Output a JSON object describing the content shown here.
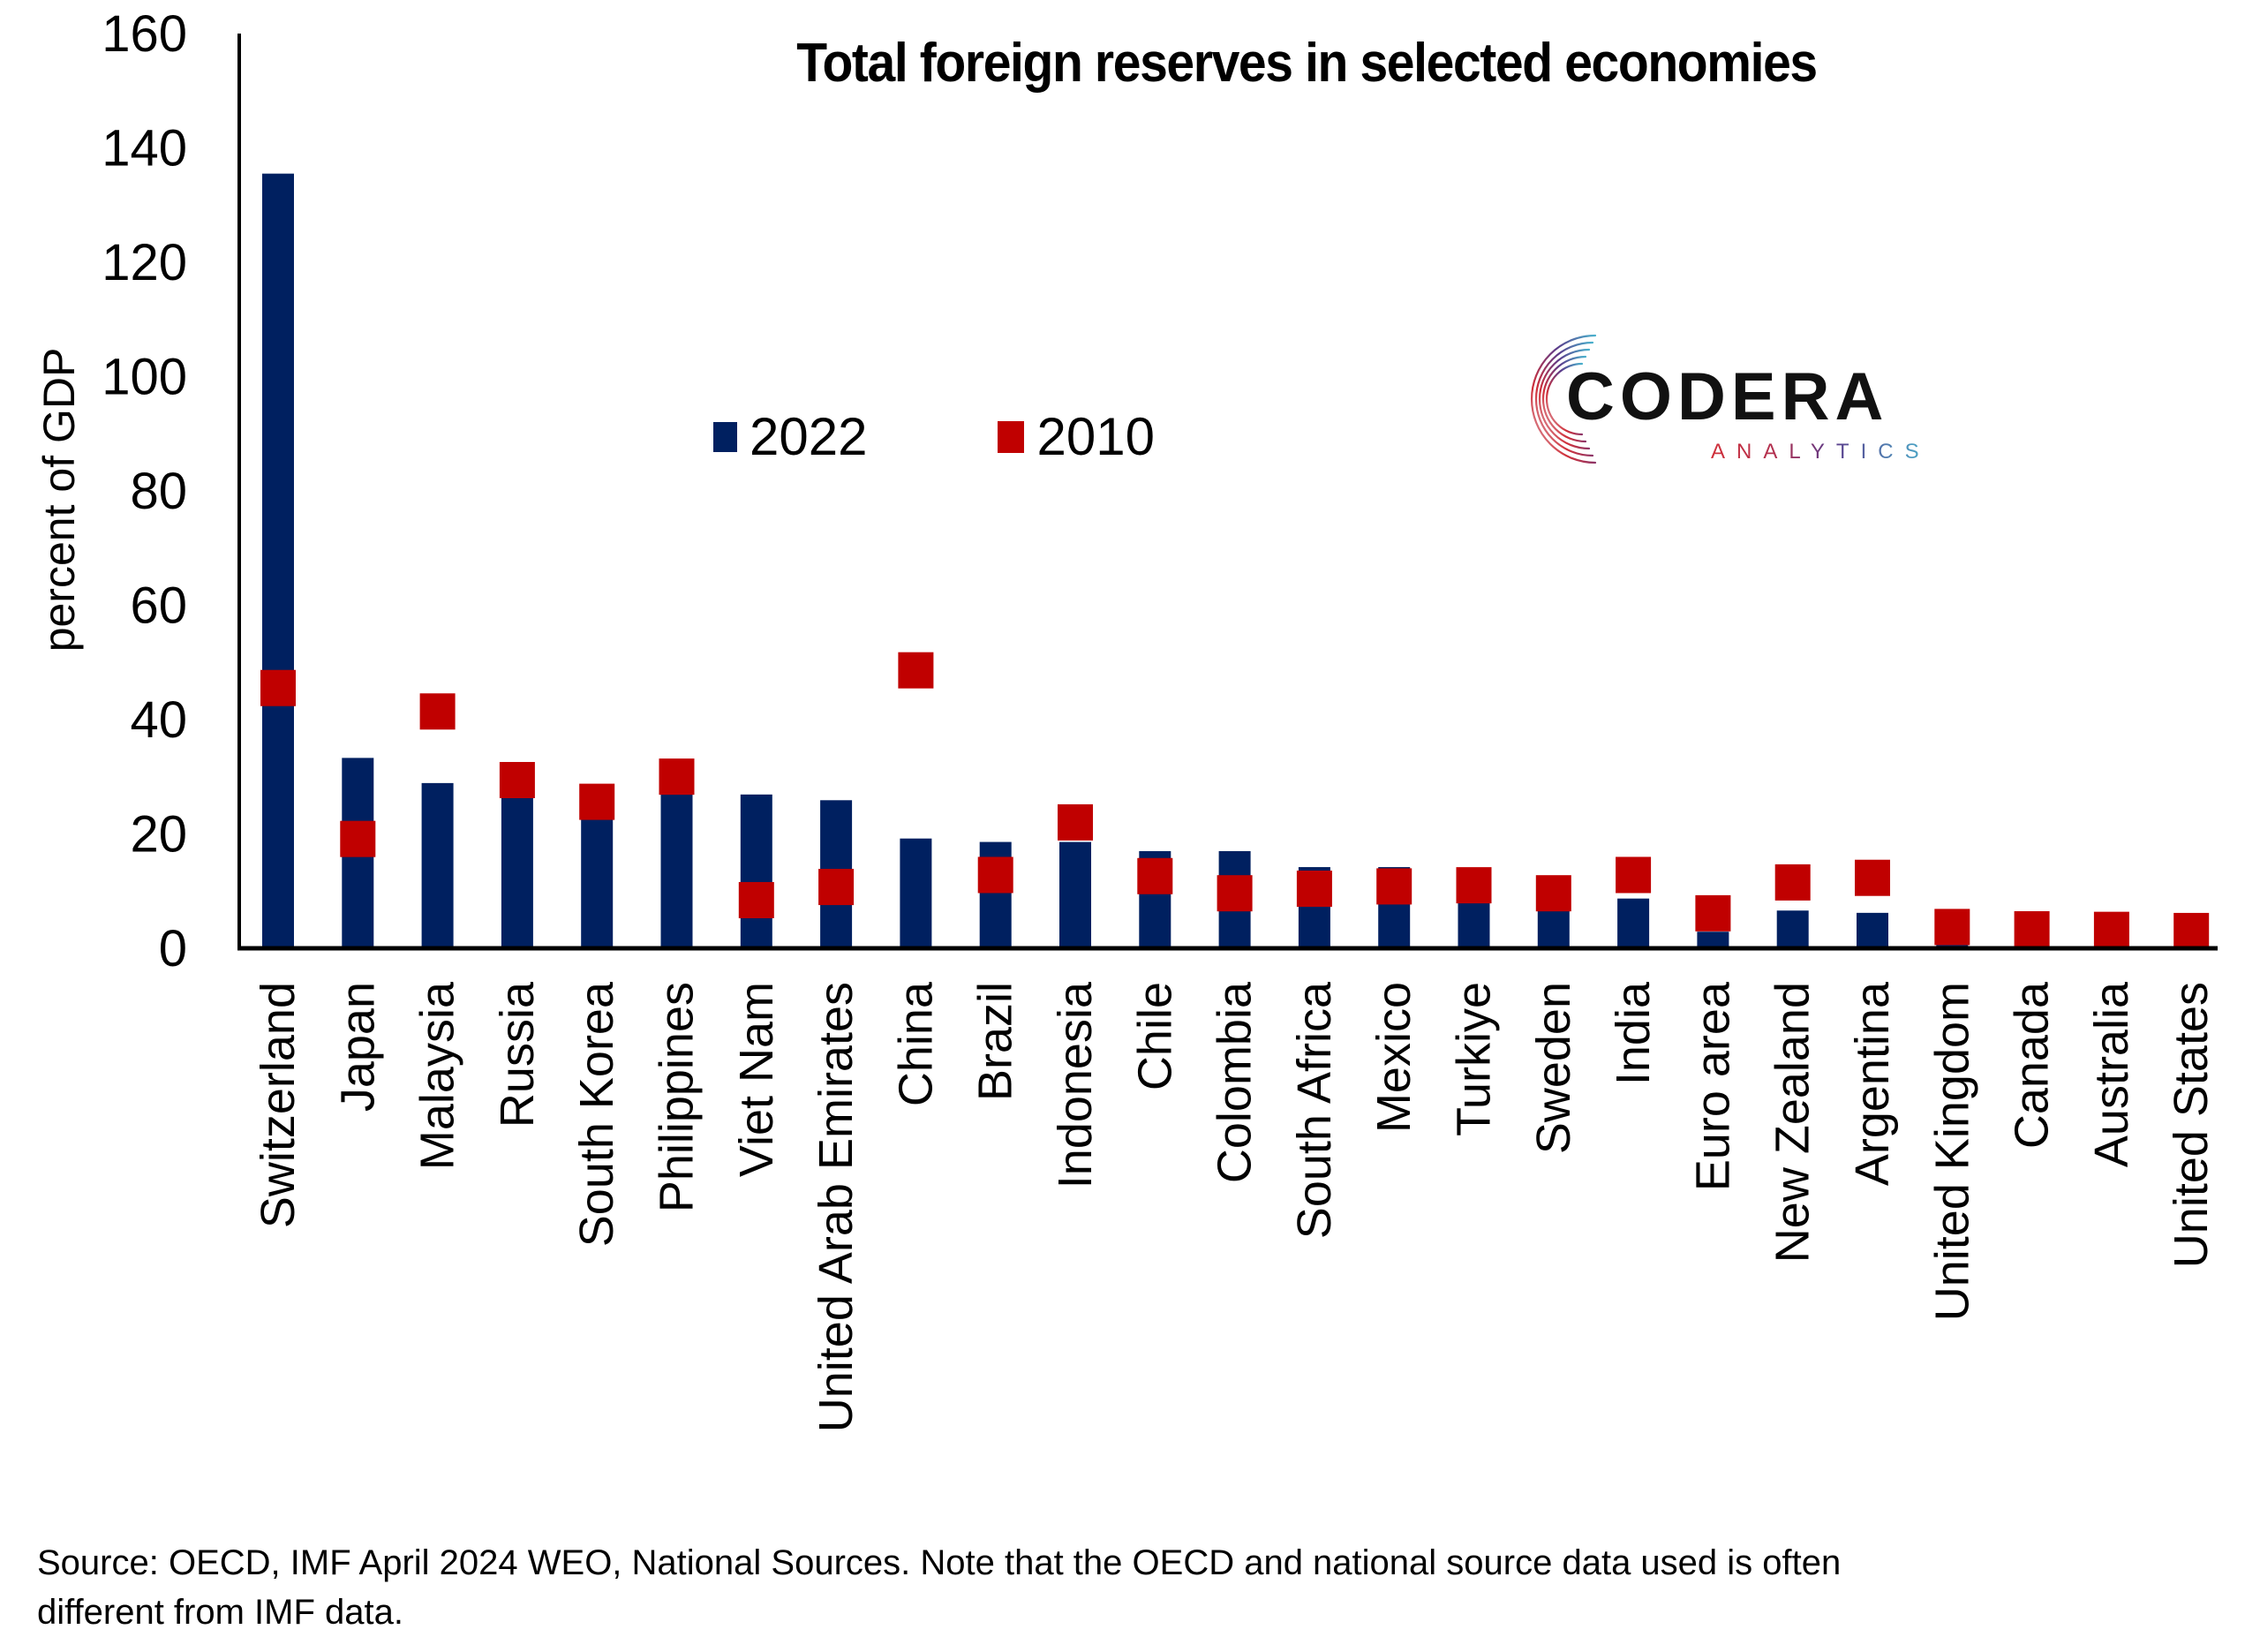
{
  "chart_data": {
    "type": "bar",
    "title": "Total foreign reserves in selected economies",
    "xlabel": "",
    "ylabel": "percent of GDP",
    "ylim": [
      0,
      160
    ],
    "yticks": [
      0,
      20,
      40,
      60,
      80,
      100,
      120,
      140,
      160
    ],
    "grid": false,
    "legend_position": "top-center",
    "categories": [
      "Switzerland",
      "Japan",
      "Malaysia",
      "Russia",
      "South Korea",
      "Philippines",
      "Viet Nam",
      "United Arab Emirates",
      "China",
      "Brazil",
      "Indonesia",
      "Chile",
      "Colombia",
      "South Africa",
      "Mexico",
      "Turkiye",
      "Sweden",
      "India",
      "Euro area",
      "New Zealand",
      "Argentina",
      "United Kingdom",
      "Canada",
      "Australia",
      "United States"
    ],
    "series": [
      {
        "name": "2022",
        "kind": "bar",
        "color": "#002060",
        "values": [
          135.5,
          33.3,
          28.9,
          27,
          23,
          27,
          26.9,
          25.9,
          19.2,
          18.6,
          18.6,
          17.0,
          17.0,
          14.2,
          14.2,
          10,
          8,
          8.7,
          2.9,
          6.6,
          6.2,
          0.6,
          0.1,
          0,
          0
        ]
      },
      {
        "name": "2010",
        "kind": "marker",
        "marker": "square",
        "color": "#C00000",
        "values": [
          45.6,
          19.2,
          41.5,
          29.5,
          25.7,
          30.1,
          8.5,
          10.8,
          48.7,
          12.9,
          22.1,
          12.7,
          9.7,
          10.5,
          10.9,
          11.1,
          9.7,
          12.9,
          6.2,
          11.6,
          12.4,
          3.8,
          3.4,
          3.3,
          3.1
        ]
      }
    ]
  },
  "logo": {
    "name": "CODERA",
    "subtitle": "ANALYTICS"
  },
  "footnote": {
    "line1": "Source: OECD, IMF April 2024 WEO, National Sources. Note that the OECD and national source data used is often",
    "line2": "different from IMF data."
  }
}
